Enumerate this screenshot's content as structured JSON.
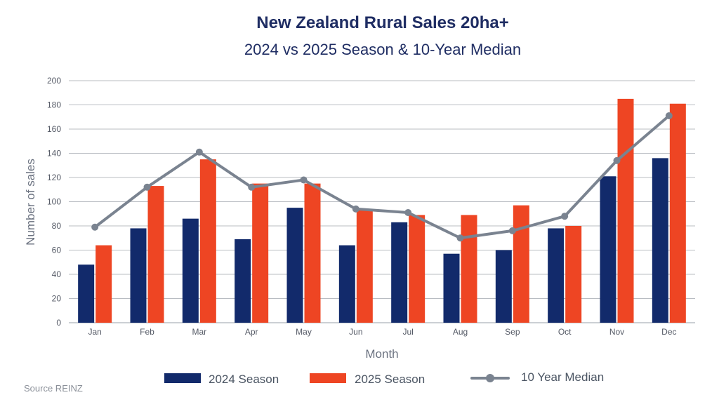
{
  "source": "Source REINZ",
  "chart_data": {
    "type": "bar",
    "title": "New Zealand Rural Sales 20ha+",
    "subtitle": "2024 vs 2025 Season & 10-Year Median",
    "xlabel": "Month",
    "ylabel": "Number of sales",
    "ylim": [
      0,
      200
    ],
    "yticks": [
      0,
      20,
      40,
      60,
      80,
      100,
      120,
      140,
      160,
      180,
      200
    ],
    "grid": true,
    "legend_position": "bottom",
    "categories": [
      "Jan",
      "Feb",
      "Mar",
      "Apr",
      "May",
      "Jun",
      "Jul",
      "Aug",
      "Sep",
      "Oct",
      "Nov",
      "Dec"
    ],
    "series": [
      {
        "name": "2024 Season",
        "type": "bar",
        "color": "#122a6b",
        "values": [
          48,
          78,
          86,
          69,
          95,
          64,
          83,
          57,
          60,
          78,
          121,
          136
        ]
      },
      {
        "name": "2025 Season",
        "type": "bar",
        "color": "#ee4523",
        "values": [
          64,
          113,
          135,
          115,
          115,
          93,
          89,
          89,
          97,
          80,
          185,
          181
        ]
      },
      {
        "name": "10 Year Median",
        "type": "line",
        "color": "#7a8390",
        "values": [
          79,
          112,
          141,
          112,
          118,
          94,
          91,
          70,
          76,
          88,
          134,
          171
        ]
      }
    ]
  }
}
